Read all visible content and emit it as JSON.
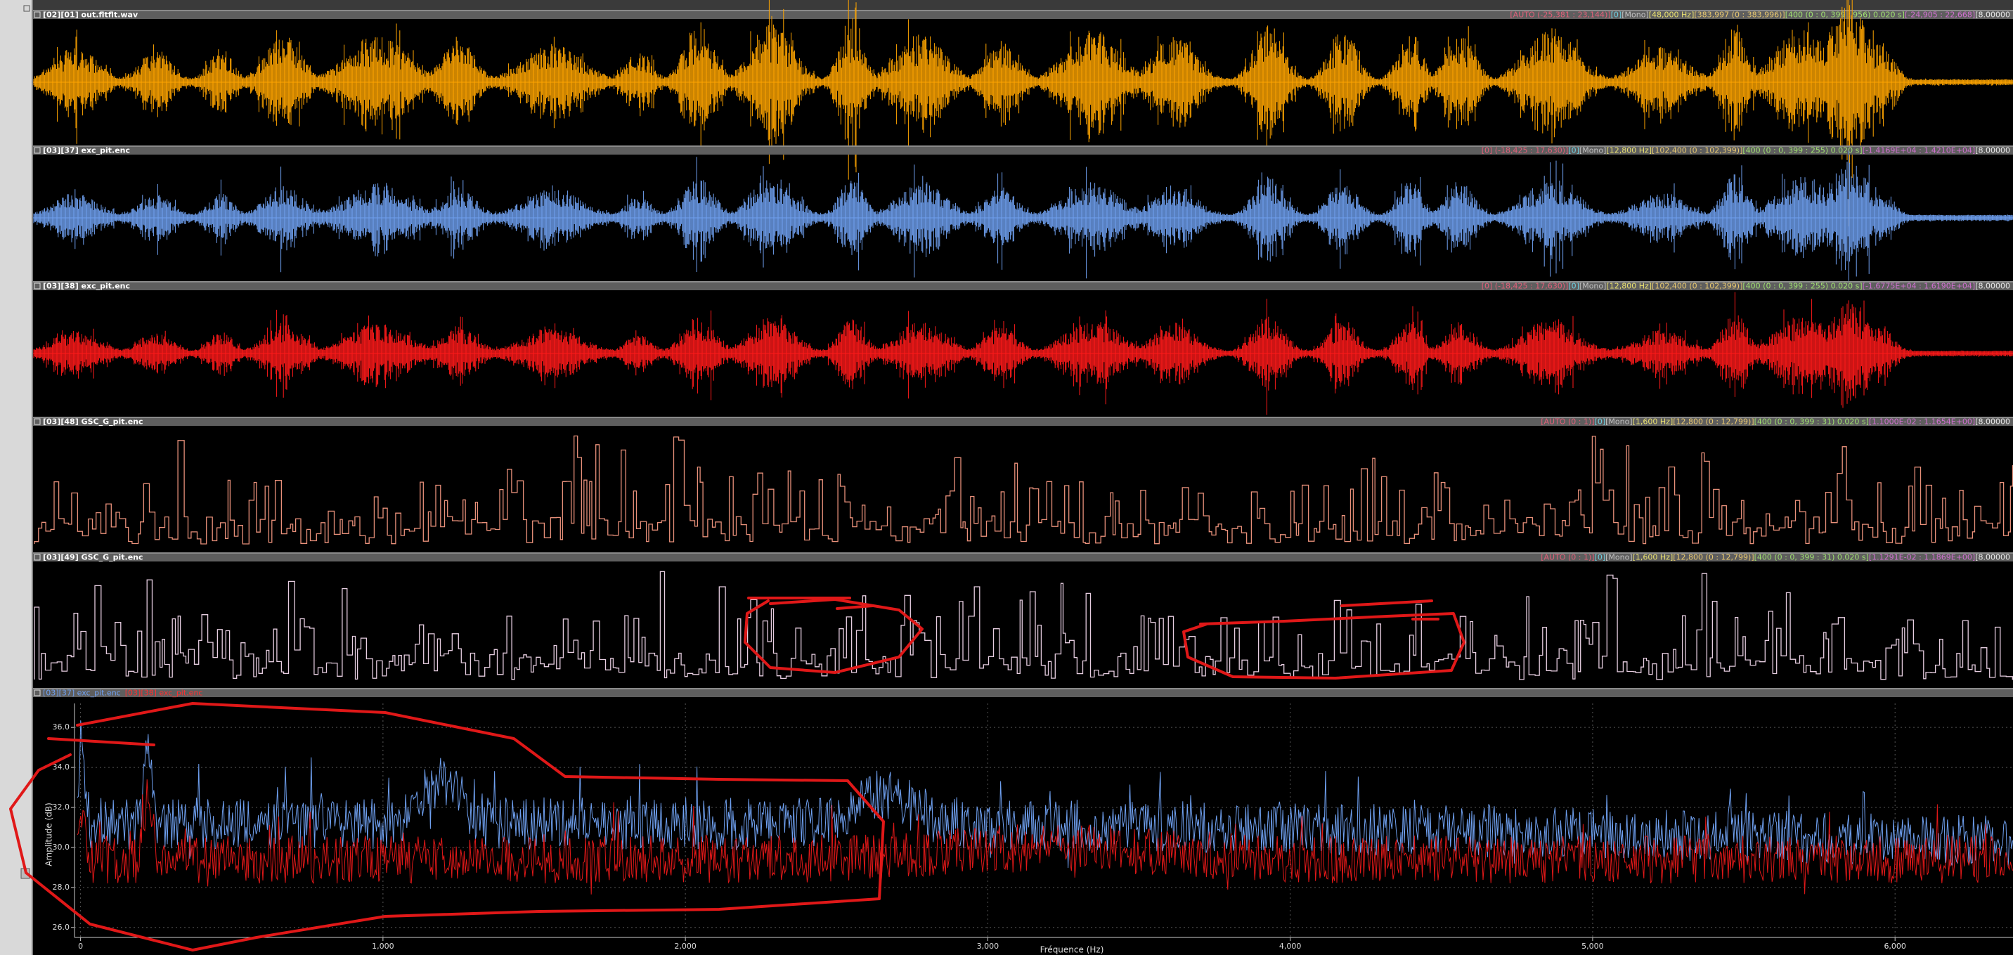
{
  "panels": [
    {
      "title": "[02][01] out.fltflt.wav",
      "info": [
        "[AUTO (-25,381 : 23,144)]",
        "[0]",
        "[Mono]",
        "[48,000 Hz]",
        "[383,997 (0 : 383,996)]",
        "[400 (0 : 0, 399 : 956) 0.020 s]",
        "[-24,905 : 22,668]",
        "[8.00000"
      ]
    },
    {
      "title": "[03][37] exc_pit.enc",
      "info": [
        "[0] (-18,425 : 17,630)]",
        "[0]",
        "[Mono]",
        "[12,800 Hz]",
        "[102,400 (0 : 102,399)]",
        "[400 (0 : 0, 399 : 255) 0.020 s]",
        "[-1.4169E+04 : 1.4210E+04]",
        "[8.00000"
      ]
    },
    {
      "title": "[03][38] exc_pit.enc",
      "info": [
        "[0] (-18,425 : 17,630)]",
        "[0]",
        "[Mono]",
        "[12,800 Hz]",
        "[102,400 (0 : 102,399)]",
        "[400 (0 : 0, 399 : 255) 0.020 s]",
        "[-1.6775E+04 : 1.6190E+04]",
        "[8.00000"
      ]
    },
    {
      "title": "[03][48] GSC_G_pit.enc",
      "info": [
        "[AUTO (0 : 1)]",
        "[0]",
        "[Mono]",
        "[1,600 Hz]",
        "[12,800 (0 : 12,799)]",
        "[400 (0 : 0, 399 : 31) 0.020 s]",
        "[1.1000E-02 : 1.1654E+00]",
        "[8.00000"
      ]
    },
    {
      "title": "[03][49] GSC_G_pit.enc",
      "info": [
        "[AUTO (0 : 1)]",
        "[0]",
        "[Mono]",
        "[1,600 Hz]",
        "[12,800 (0 : 12,799)]",
        "[400 (0 : 0, 399 : 31) 0.020 s]",
        "[1.1291E-02 : 1.1869E+00]",
        "[8.00000"
      ]
    }
  ],
  "spectrum": {
    "legend": [
      "[03][37] exc_pit.enc",
      "[03][38] exc_pit.enc"
    ],
    "y_label": "Amplitude (dB)",
    "x_label": "Fréquence (Hz)",
    "xlim": [
      -20,
      6390
    ],
    "ylim": [
      25.5,
      37.2
    ],
    "yticks": [
      {
        "value": 26,
        "label": "26.0"
      },
      {
        "value": 28,
        "label": "28.0"
      },
      {
        "value": 30,
        "label": "30.0"
      },
      {
        "value": 32,
        "label": "32.0"
      },
      {
        "value": 34,
        "label": "34.0"
      },
      {
        "value": 36,
        "label": "36.0"
      }
    ],
    "xticks": [
      0,
      {
        "value": 1000,
        "label": "1,000"
      },
      {
        "value": 2000,
        "label": "2,000"
      },
      {
        "value": 3000,
        "label": "3,000"
      },
      {
        "value": 4000,
        "label": "4,000"
      },
      {
        "value": 5000,
        "label": "5,000"
      },
      {
        "value": 6000,
        "label": "6,000"
      }
    ]
  }
}
